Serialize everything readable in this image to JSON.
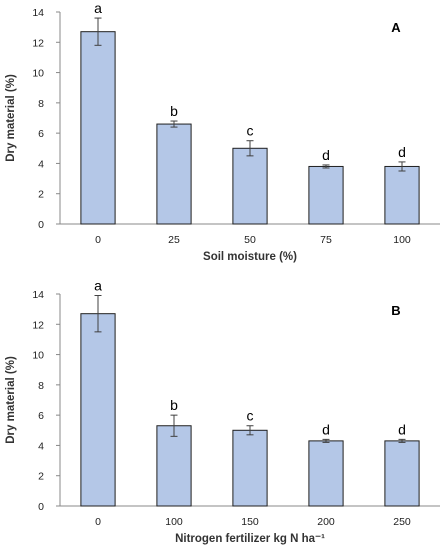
{
  "colors": {
    "bar_fill": "#b4c7e7",
    "bar_stroke": "#1f1f1f",
    "axis": "#888888",
    "error_bar": "#404040"
  },
  "chart_data": [
    {
      "type": "bar",
      "panel_label": "A",
      "categories": [
        "0",
        "25",
        "50",
        "75",
        "100"
      ],
      "values": [
        12.7,
        6.6,
        5.0,
        3.8,
        3.8
      ],
      "errors": [
        0.9,
        0.2,
        0.5,
        0.1,
        0.3
      ],
      "significance": [
        "a",
        "b",
        "c",
        "d",
        "d"
      ],
      "xlabel": "Soil moisture  (%)",
      "ylabel": "Dry material (%)",
      "ylim": [
        0,
        14
      ],
      "yticks": [
        0,
        2,
        4,
        6,
        8,
        10,
        12,
        14
      ],
      "grid": false
    },
    {
      "type": "bar",
      "panel_label": "B",
      "categories": [
        "0",
        "100",
        "150",
        "200",
        "250"
      ],
      "values": [
        12.7,
        5.3,
        5.0,
        4.3,
        4.3
      ],
      "errors": [
        1.2,
        0.7,
        0.3,
        0.1,
        0.1
      ],
      "significance": [
        "a",
        "b",
        "c",
        "d",
        "d"
      ],
      "xlabel": "Nitrogen fertilizer kg N ha⁻¹",
      "ylabel": "Dry material (%)",
      "ylim": [
        0,
        14
      ],
      "yticks": [
        0,
        2,
        4,
        6,
        8,
        10,
        12,
        14
      ],
      "grid": false
    }
  ]
}
